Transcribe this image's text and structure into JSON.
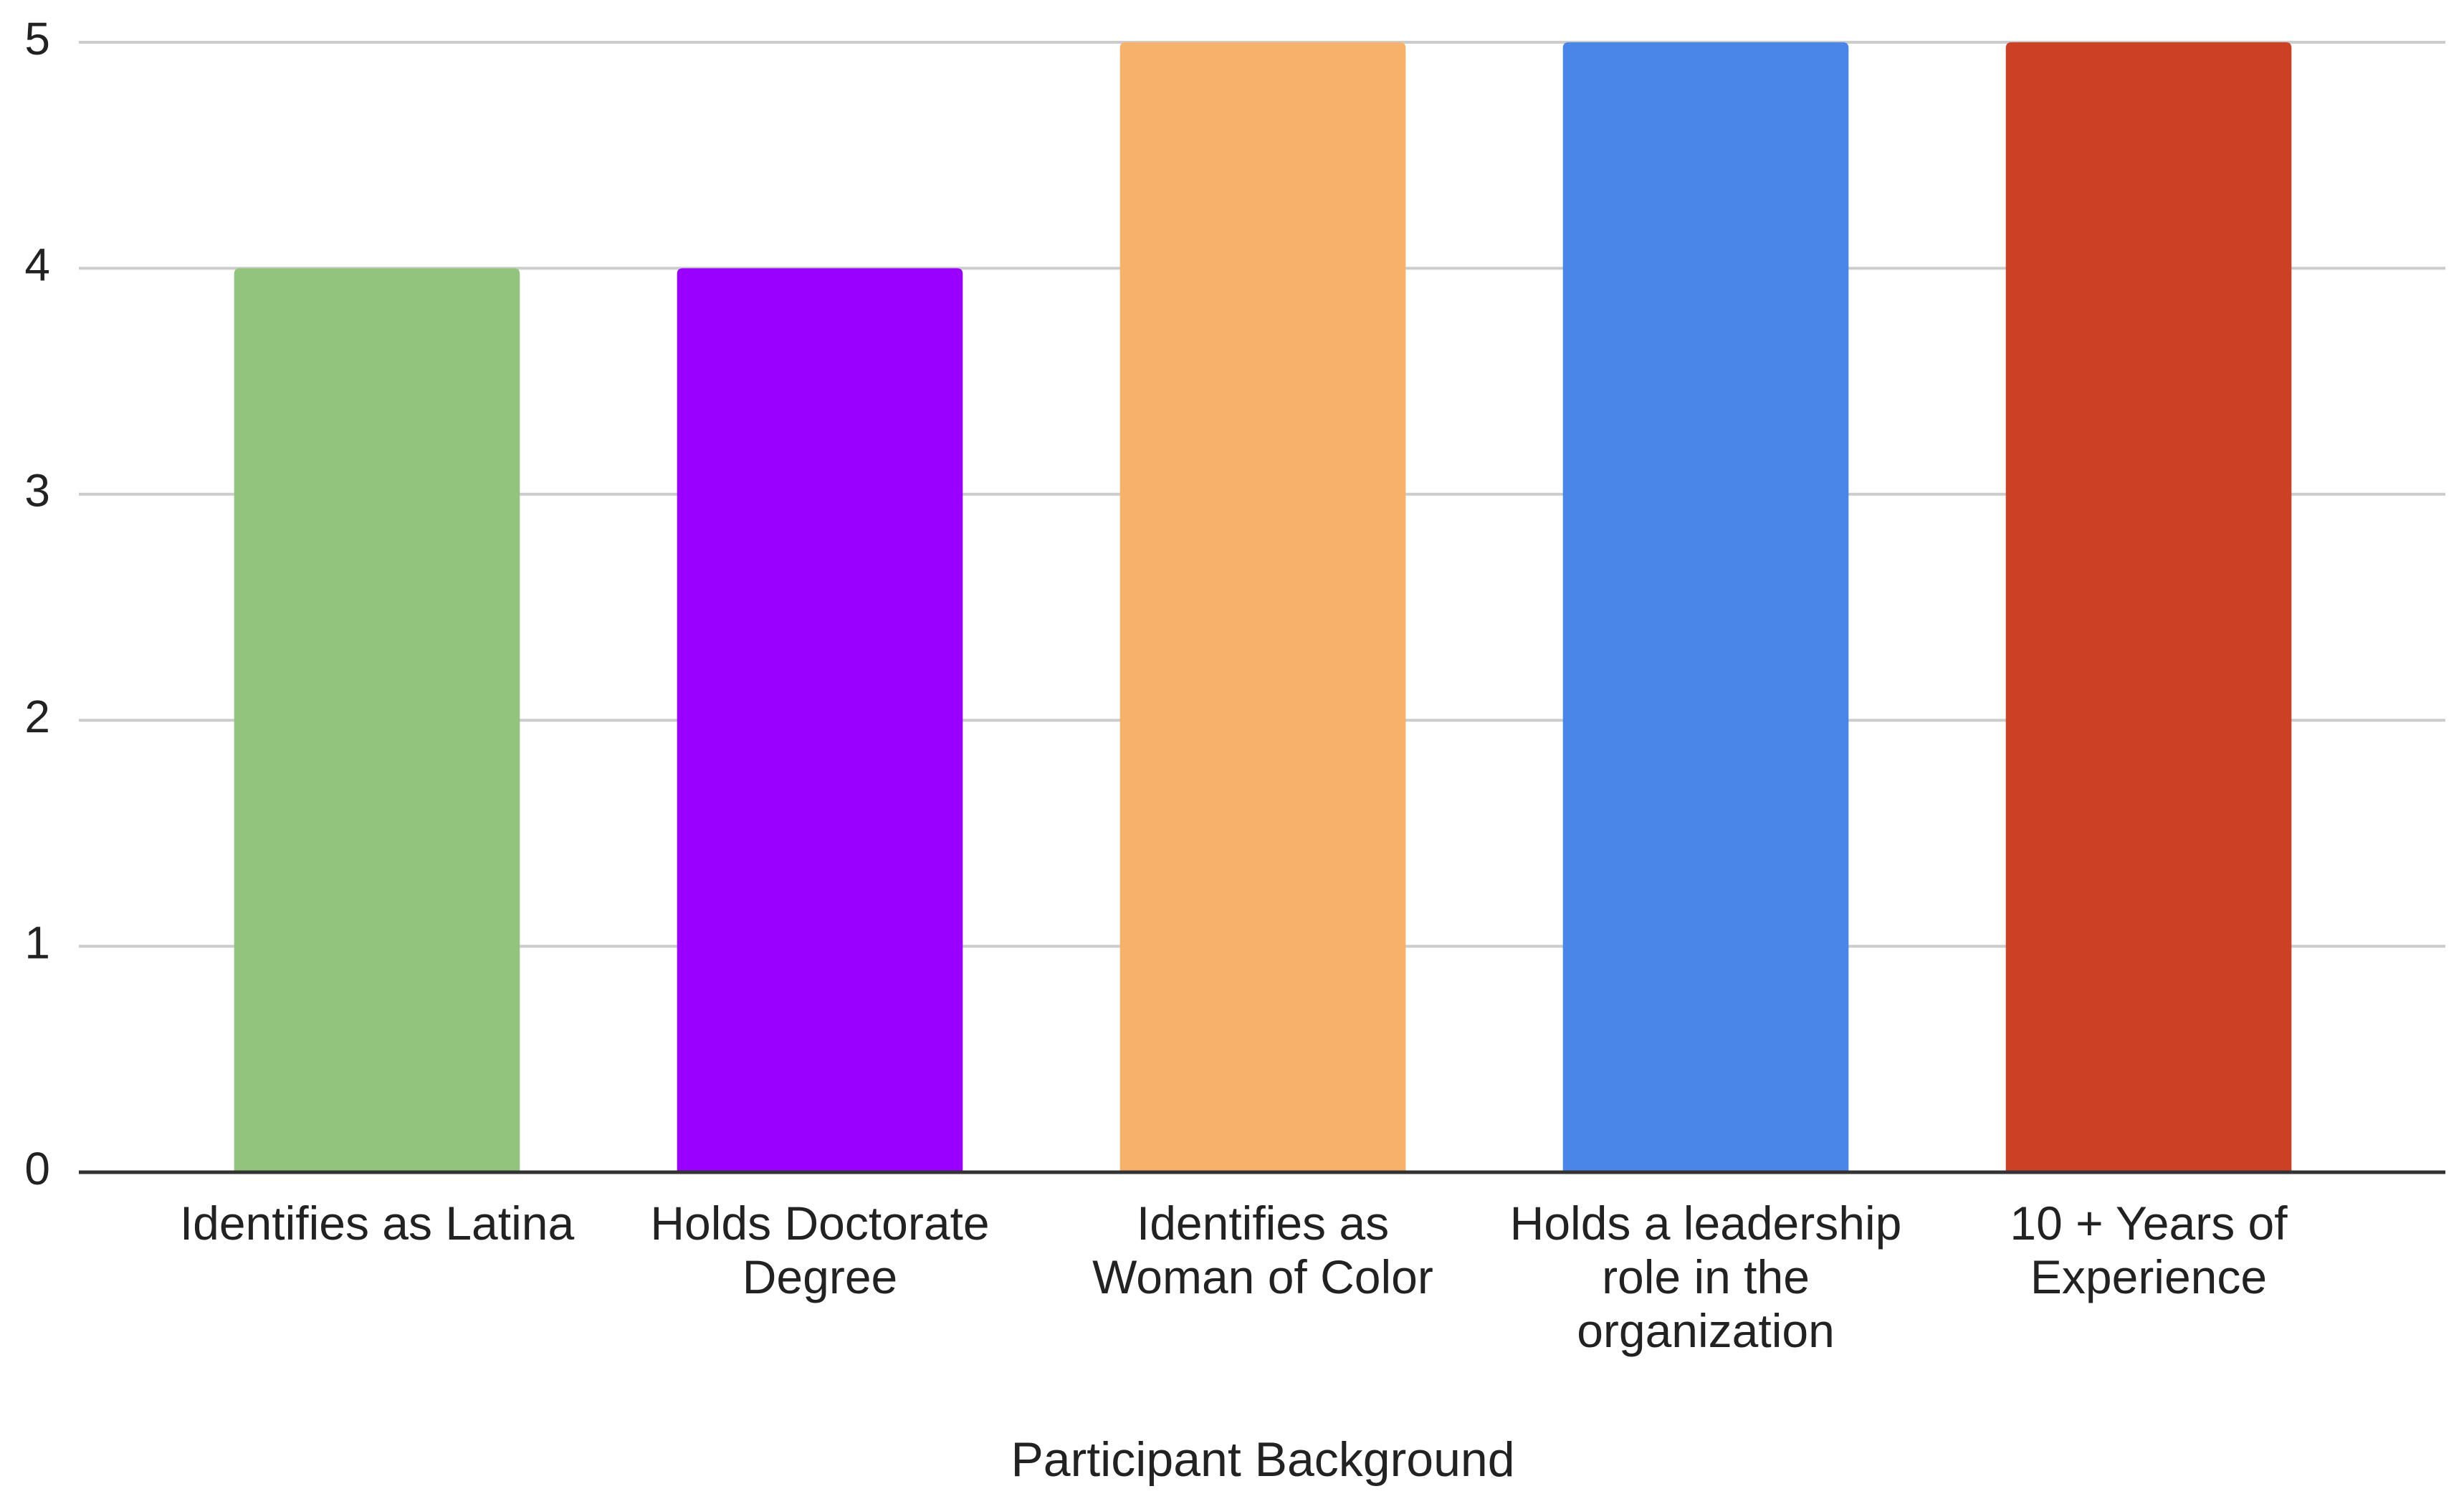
{
  "chart_data": {
    "type": "bar",
    "x_label": "Participant Background",
    "categories": [
      "Identifies as Latina",
      "Holds Doctorate Degree",
      "Identifies as Woman of Color",
      "Holds a leadership role in the organization",
      "10 + Years of Experience"
    ],
    "values": [
      4,
      4,
      5,
      5,
      5
    ],
    "colors": [
      "#93c47d",
      "#9900ff",
      "#f6b26b",
      "#4a86e8",
      "#cc4125"
    ],
    "ylim": [
      0,
      5
    ],
    "yticks": [
      0,
      1,
      2,
      3,
      4,
      5
    ],
    "grid": true
  }
}
